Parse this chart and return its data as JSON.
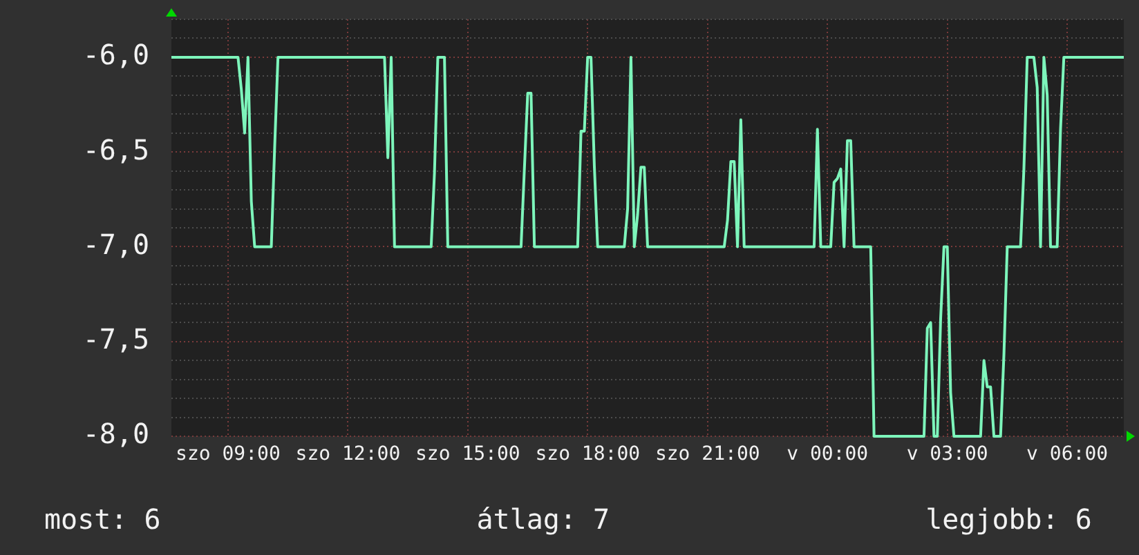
{
  "chart_data": {
    "type": "line",
    "color": "#7df5bb",
    "marker": "none",
    "grid": true,
    "annotations": [
      "most: 6",
      "átlag: 7",
      "legjobb: 6"
    ],
    "ylim": [
      -8,
      -5.8
    ],
    "yticks": [
      {
        "value": -8,
        "label": "-8,0"
      },
      {
        "value": -7.9,
        "label": null
      },
      {
        "value": -7.8,
        "label": null
      },
      {
        "value": -7.7,
        "label": null
      },
      {
        "value": -7.6,
        "label": null
      },
      {
        "value": -7.5,
        "label": "-7,5"
      },
      {
        "value": -7.4,
        "label": null
      },
      {
        "value": -7.3,
        "label": null
      },
      {
        "value": -7.2,
        "label": null
      },
      {
        "value": -7.1,
        "label": null
      },
      {
        "value": -7,
        "label": "-7,0"
      },
      {
        "value": -6.9,
        "label": null
      },
      {
        "value": -6.8,
        "label": null
      },
      {
        "value": -6.7,
        "label": null
      },
      {
        "value": -6.6,
        "label": null
      },
      {
        "value": -6.5,
        "label": "-6,5"
      },
      {
        "value": -6.4,
        "label": null
      },
      {
        "value": -6.3,
        "label": null
      },
      {
        "value": -6.2,
        "label": null
      },
      {
        "value": -6.1,
        "label": null
      },
      {
        "value": -6,
        "label": "-6,0"
      },
      {
        "value": -5.9,
        "label": null
      },
      {
        "value": -5.8,
        "label": null
      }
    ],
    "categories": [
      null,
      null,
      null,
      null,
      null,
      null,
      null,
      null,
      null,
      null,
      null,
      null,
      null,
      null,
      null,
      null,
      null,
      "szo 09:00",
      null,
      null,
      null,
      null,
      null,
      null,
      null,
      null,
      null,
      null,
      null,
      null,
      null,
      null,
      null,
      null,
      null,
      null,
      null,
      null,
      null,
      null,
      null,
      null,
      null,
      null,
      null,
      null,
      null,
      null,
      null,
      null,
      null,
      null,
      null,
      "szo 12:00",
      null,
      null,
      null,
      null,
      null,
      null,
      null,
      null,
      null,
      null,
      null,
      null,
      null,
      null,
      null,
      null,
      null,
      null,
      null,
      null,
      null,
      null,
      null,
      null,
      null,
      null,
      null,
      null,
      null,
      null,
      null,
      null,
      null,
      null,
      null,
      "szo 15:00",
      null,
      null,
      null,
      null,
      null,
      null,
      null,
      null,
      null,
      null,
      null,
      null,
      null,
      null,
      null,
      null,
      null,
      null,
      null,
      null,
      null,
      null,
      null,
      null,
      null,
      null,
      null,
      null,
      null,
      null,
      null,
      null,
      null,
      null,
      null,
      "szo 18:00",
      null,
      null,
      null,
      null,
      null,
      null,
      null,
      null,
      null,
      null,
      null,
      null,
      null,
      null,
      null,
      null,
      null,
      null,
      null,
      null,
      null,
      null,
      null,
      null,
      null,
      null,
      null,
      null,
      null,
      null,
      null,
      null,
      null,
      null,
      null,
      "szo 21:00",
      null,
      null,
      null,
      null,
      null,
      null,
      null,
      null,
      null,
      null,
      null,
      null,
      null,
      null,
      null,
      null,
      null,
      null,
      null,
      null,
      null,
      null,
      null,
      null,
      null,
      null,
      null,
      null,
      null,
      null,
      null,
      null,
      null,
      null,
      null,
      "v 00:00",
      null,
      null,
      null,
      null,
      null,
      null,
      null,
      null,
      null,
      null,
      null,
      null,
      null,
      null,
      null,
      null,
      null,
      null,
      null,
      null,
      null,
      null,
      null,
      null,
      null,
      null,
      null,
      null,
      null,
      null,
      null,
      null,
      null,
      null,
      null,
      "v 03:00",
      null,
      null,
      null,
      null,
      null,
      null,
      null,
      null,
      null,
      null,
      null,
      null,
      null,
      null,
      null,
      null,
      null,
      null,
      null,
      null,
      null,
      null,
      null,
      null,
      null,
      null,
      null,
      null,
      null,
      null,
      null,
      null,
      null,
      null,
      null,
      "v 06:00",
      null,
      null,
      null,
      null,
      null,
      null,
      null,
      null,
      null,
      null,
      null,
      null,
      null,
      null,
      null,
      null,
      null
    ],
    "values": [
      -6,
      -6,
      -6,
      -6,
      -6,
      -6,
      -6,
      -6,
      -6,
      -6,
      -6,
      -6,
      -6,
      -6,
      -6,
      -6,
      -6,
      -6,
      -6,
      -6,
      -6,
      -6.17,
      -6.4,
      -6,
      -6.76,
      -7,
      -7,
      -7,
      -7,
      -7,
      -7,
      -6.48,
      -6,
      -6,
      -6,
      -6,
      -6,
      -6,
      -6,
      -6,
      -6,
      -6,
      -6,
      -6,
      -6,
      -6,
      -6,
      -6,
      -6,
      -6,
      -6,
      -6,
      -6,
      -6,
      -6,
      -6,
      -6,
      -6,
      -6,
      -6,
      -6,
      -6,
      -6,
      -6,
      -6,
      -6.53,
      -6,
      -7,
      -7,
      -7,
      -7,
      -7,
      -7,
      -7,
      -7,
      -7,
      -7,
      -7,
      -7,
      -6.61,
      -6,
      -6,
      -6,
      -7,
      -7,
      -7,
      -7,
      -7,
      -7,
      -7,
      -7,
      -7,
      -7,
      -7,
      -7,
      -7,
      -7,
      -7,
      -7,
      -7,
      -7,
      -7,
      -7,
      -7,
      -7,
      -7,
      -6.59,
      -6.19,
      -6.19,
      -7,
      -7,
      -7,
      -7,
      -7,
      -7,
      -7,
      -7,
      -7,
      -7,
      -7,
      -7,
      -7,
      -7,
      -6.39,
      -6.39,
      -6,
      -6,
      -6.57,
      -7,
      -7,
      -7,
      -7,
      -7,
      -7,
      -7,
      -7,
      -7,
      -6.8,
      -6,
      -7,
      -6.83,
      -6.58,
      -6.58,
      -7,
      -7,
      -7,
      -7,
      -7,
      -7,
      -7,
      -7,
      -7,
      -7,
      -7,
      -7,
      -7,
      -7,
      -7,
      -7,
      -7,
      -7,
      -7,
      -7,
      -7,
      -7,
      -7,
      -7,
      -6.86,
      -6.55,
      -6.55,
      -7,
      -6.33,
      -7,
      -7,
      -7,
      -7,
      -7,
      -7,
      -7,
      -7,
      -7,
      -7,
      -7,
      -7,
      -7,
      -7,
      -7,
      -7,
      -7,
      -7,
      -7,
      -7,
      -7,
      -7,
      -6.38,
      -7,
      -7,
      -7,
      -7,
      -6.66,
      -6.64,
      -6.59,
      -7,
      -6.44,
      -6.44,
      -7,
      -7,
      -7,
      -7,
      -7,
      -7,
      -8,
      -8,
      -8,
      -8,
      -8,
      -8,
      -8,
      -8,
      -8,
      -8,
      -8,
      -8,
      -8,
      -8,
      -8,
      -8,
      -7.43,
      -7.4,
      -8,
      -8,
      -7.38,
      -7,
      -7,
      -7.77,
      -8,
      -8,
      -8,
      -8,
      -8,
      -8,
      -8,
      -8,
      -8,
      -7.6,
      -7.74,
      -7.74,
      -8,
      -8,
      -8,
      -7.57,
      -7,
      -7,
      -7,
      -7,
      -7,
      -6.59,
      -6,
      -6,
      -6,
      -6.16,
      -7,
      -6,
      -6.2,
      -7,
      -7,
      -7,
      -6.38,
      -6,
      -6,
      -6,
      -6,
      -6,
      -6,
      -6,
      -6,
      -6,
      -6,
      -6,
      -6,
      -6,
      -6,
      -6,
      -6,
      -6,
      -6,
      -6
    ]
  }
}
